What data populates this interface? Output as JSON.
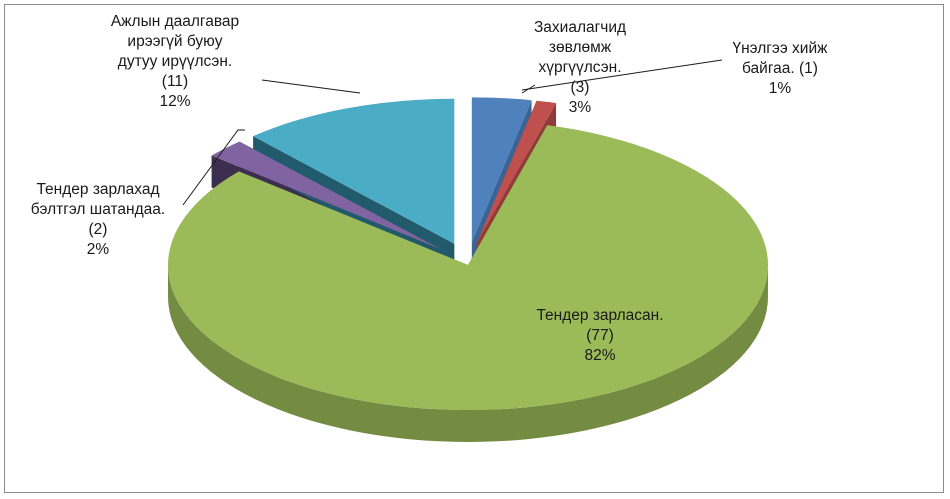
{
  "chart_data": {
    "type": "pie",
    "style": "3d-exploded",
    "legend": "none",
    "slices": [
      {
        "lines": [
          "Захиалагчид",
          "зөвлөмж",
          "хүргүүлсэн."
        ],
        "count": 3,
        "count_text": "(3)",
        "percent_text": "3%",
        "color": "#4f81bd",
        "side_color": "#3a6496"
      },
      {
        "lines": [
          "Үнэлгээ хийж",
          "байгаа. (1)"
        ],
        "count": 1,
        "count_text": "",
        "percent_text": "1%",
        "color": "#c0504d",
        "side_color": "#8f3b39"
      },
      {
        "lines": [
          "Тендер зарласан."
        ],
        "count": 77,
        "count_text": "(77)",
        "percent_text": "82%",
        "color": "#9bbb59",
        "side_color": "#748c42"
      },
      {
        "lines": [
          "Тендер зарлахад",
          "бэлтгэл шатандаа."
        ],
        "count": 2,
        "count_text": "(2)",
        "percent_text": "2%",
        "color": "#8064a2",
        "side_color": "#3b2e4f"
      },
      {
        "lines": [
          "Ажлын даалгавар",
          "ирээгүй буюу",
          "дутуу ирүүлсэн."
        ],
        "count": 11,
        "count_text": "(11)",
        "percent_text": "12%",
        "color": "#4bacc6",
        "side_color": "#215a6b"
      }
    ]
  }
}
